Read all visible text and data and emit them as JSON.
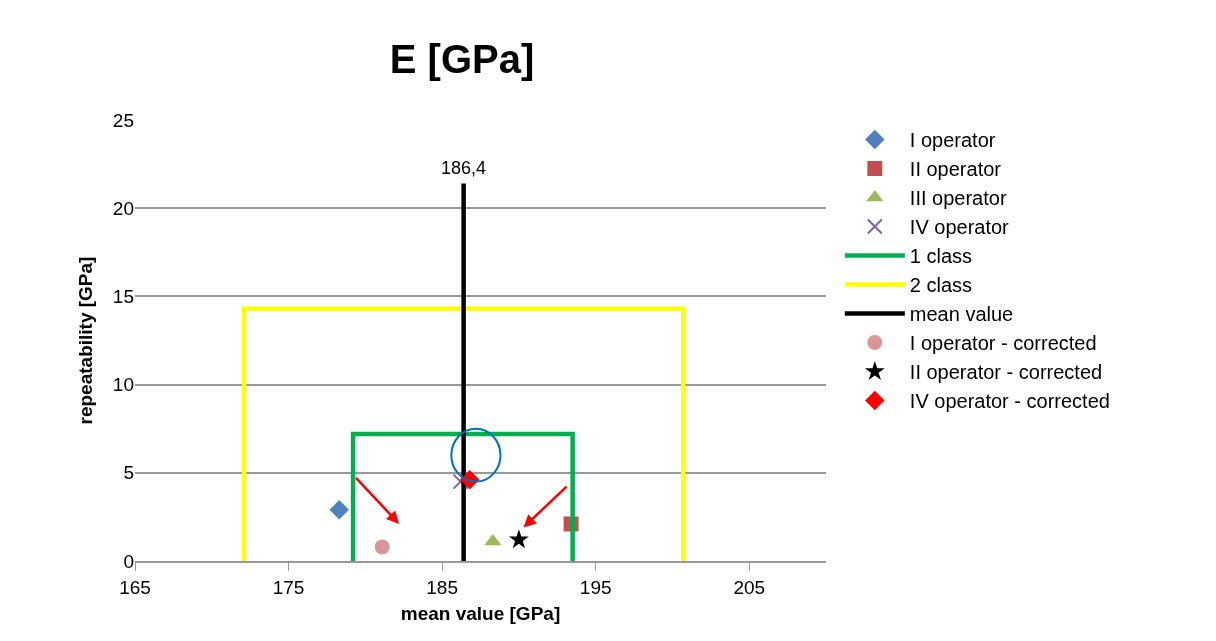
{
  "chart_data": {
    "type": "scatter",
    "title": "E [GPa]",
    "xlabel": "mean value [GPa]",
    "ylabel": "repeatability [GPa]",
    "xlim": [
      165,
      210
    ],
    "xticks": [
      165,
      175,
      185,
      195,
      205
    ],
    "ylim": [
      0,
      25
    ],
    "yticks": [
      0,
      5,
      10,
      15,
      20,
      25
    ],
    "grid": "y",
    "legend": "right",
    "series": [
      {
        "name": "I operator",
        "color": "#4f81bd",
        "marker": "diamond",
        "x": [
          178.3
        ],
        "values": [
          2.9
        ]
      },
      {
        "name": "II operator",
        "color": "#c0504d",
        "marker": "square",
        "x": [
          193.4
        ],
        "values": [
          2.1
        ]
      },
      {
        "name": "III operator",
        "color": "#9bbb59",
        "marker": "triangle",
        "x": [
          188.3
        ],
        "values": [
          1.1
        ]
      },
      {
        "name": "IV operator",
        "color": "#8064a2",
        "marker": "cross",
        "x": [
          186.2
        ],
        "values": [
          4.5
        ]
      },
      {
        "name": "1 class",
        "type": "line",
        "color": "#00b050",
        "marker": "none",
        "x": [
          179.2,
          179.2,
          193.5,
          193.5
        ],
        "values": [
          0,
          7.2,
          7.2,
          0
        ]
      },
      {
        "name": "2 class",
        "type": "line",
        "color": "#ffff00",
        "marker": "none",
        "x": [
          172.1,
          172.1,
          200.7,
          200.7
        ],
        "values": [
          0,
          14.3,
          14.3,
          0
        ]
      },
      {
        "name": "mean value",
        "type": "line",
        "color": "#000000",
        "marker": "none",
        "x": [
          186.4,
          186.4
        ],
        "values": [
          0,
          21.4
        ]
      },
      {
        "name": "I operator - corrected",
        "color": "#d99694",
        "marker": "circle",
        "x": [
          181.1
        ],
        "values": [
          0.8
        ]
      },
      {
        "name": "II operator - corrected",
        "color": "#000000",
        "marker": "star",
        "x": [
          190.0
        ],
        "values": [
          1.2
        ]
      },
      {
        "name": "IV operator - corrected",
        "color": "#ff0000",
        "marker": "diamond",
        "x": [
          186.8
        ],
        "values": [
          4.6
        ]
      }
    ],
    "annotations": [
      {
        "text": "186,4",
        "x": 186.4,
        "y": 21.4
      }
    ]
  }
}
